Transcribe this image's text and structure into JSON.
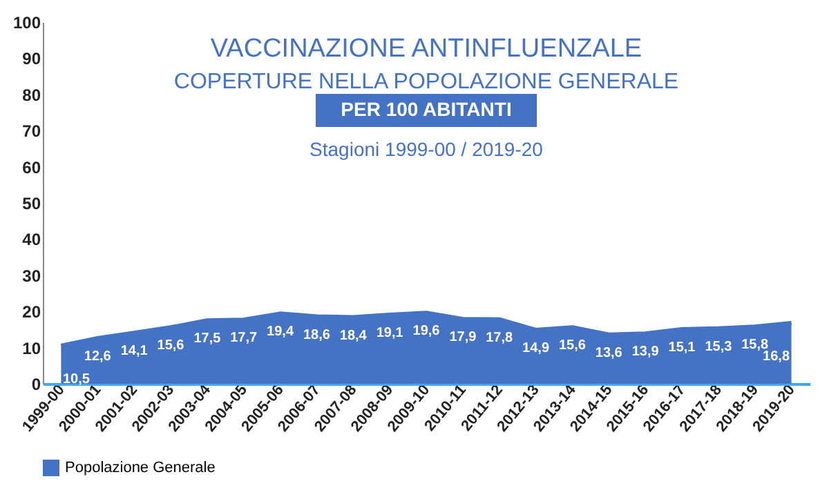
{
  "chart_data": {
    "type": "area",
    "title": "VACCINAZIONE ANTINFLUENZALE",
    "subtitle": "COPERTURE NELLA POPOLAZIONE GENERALE",
    "annotations": [
      "PER 100 ABITANTI",
      "Stagioni 1999-00 / 2019-20"
    ],
    "categories": [
      "1999-00",
      "2000-01",
      "2001-02",
      "2002-03",
      "2003-04",
      "2004-05",
      "2005-06",
      "2006-07",
      "2007-08",
      "2008-09",
      "2009-10",
      "2010-11",
      "2011-12",
      "2012-13",
      "2013-14",
      "2014-15",
      "2015-16",
      "2016-17",
      "2017-18",
      "2018-19",
      "2019-20"
    ],
    "series": [
      {
        "name": "Popolazione Generale",
        "color": "#4472c4",
        "values": [
          10.5,
          12.6,
          14.1,
          15.6,
          17.5,
          17.7,
          19.4,
          18.6,
          18.4,
          19.1,
          19.6,
          17.9,
          17.8,
          14.9,
          15.6,
          13.6,
          13.9,
          15.1,
          15.3,
          15.8,
          16.8
        ],
        "value_labels": [
          "10,5",
          "12,6",
          "14,1",
          "15,6",
          "17,5",
          "17,7",
          "19,4",
          "18,6",
          "18,4",
          "19,1",
          "19,6",
          "17,9",
          "17,8",
          "14,9",
          "15,6",
          "13,6",
          "13,9",
          "15,1",
          "15,3",
          "15,8",
          "16,8"
        ]
      }
    ],
    "ylim": [
      0,
      100
    ],
    "yticks": [
      0,
      10,
      20,
      30,
      40,
      50,
      60,
      70,
      80,
      90,
      100
    ],
    "grid": false,
    "legend": "bottom"
  }
}
